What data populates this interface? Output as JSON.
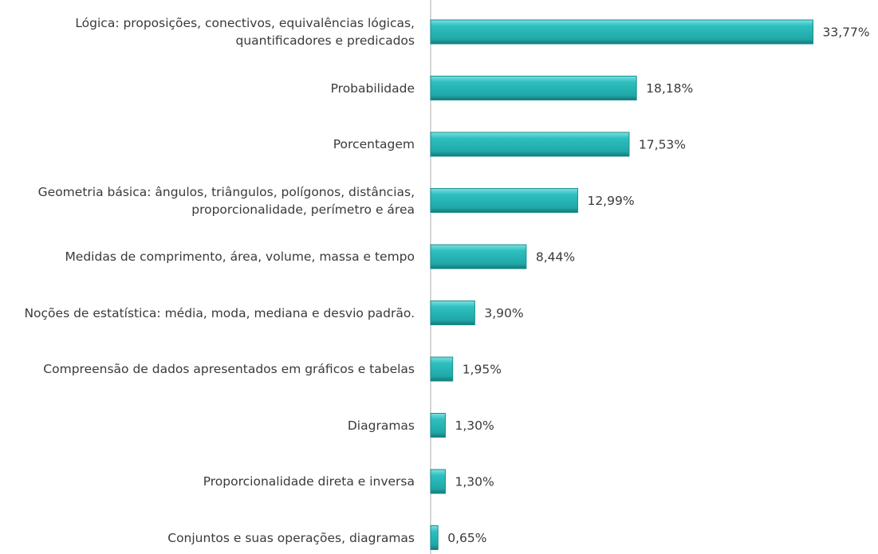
{
  "chart_data": {
    "type": "bar",
    "orientation": "horizontal",
    "categories": [
      "Lógica: proposições, conectivos, equivalências lógicas, quantificadores e predicados",
      "Probabilidade",
      "Porcentagem",
      "Geometria básica: ângulos, triângulos, polígonos, distâncias, proporcionalidade, perímetro e área",
      "Medidas de comprimento, área, volume, massa e tempo",
      "Noções de estatística: média, moda, mediana e desvio padrão.",
      "Compreensão de dados apresentados em gráficos e tabelas",
      "Diagramas",
      "Proporcionalidade direta e inversa",
      "Conjuntos e suas operações, diagramas"
    ],
    "values": [
      33.77,
      18.18,
      17.53,
      12.99,
      8.44,
      3.9,
      1.95,
      1.3,
      1.3,
      0.65
    ],
    "value_labels": [
      "33,77%",
      "18,18%",
      "17,53%",
      "12,99%",
      "8,44%",
      "3,90%",
      "1,95%",
      "1,30%",
      "1,30%",
      "0,65%"
    ],
    "color": "#2ebfbf",
    "xlim": [
      0,
      35
    ]
  }
}
